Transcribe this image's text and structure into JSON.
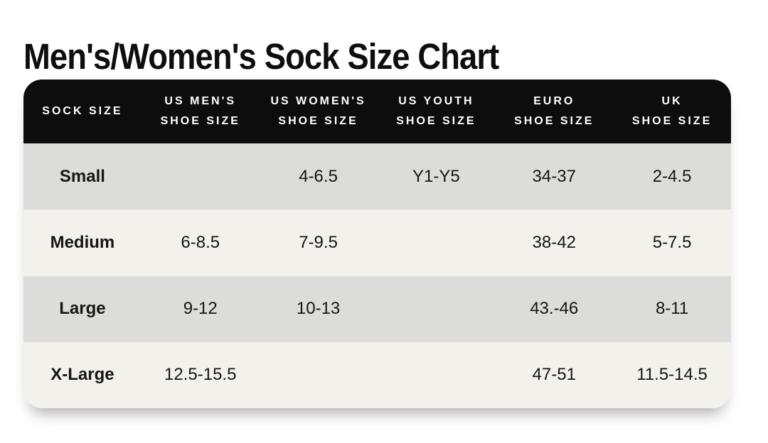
{
  "page": {
    "title": "Men's/Women's Sock Size Chart"
  },
  "colors": {
    "page_bg": "#ffffff",
    "title_text": "#0e0e0e",
    "header_bg": "#0d0d0d",
    "header_text": "#ffffff",
    "row_gray": "#dcdcdb",
    "row_cream": "#f2f1ec",
    "cell_text": "#161616"
  },
  "table": {
    "headers": [
      {
        "lines": [
          "SOCK SIZE",
          ""
        ]
      },
      {
        "lines": [
          "US MEN'S",
          "SHOE SIZE"
        ]
      },
      {
        "lines": [
          "US WOMEN'S",
          "SHOE SIZE"
        ]
      },
      {
        "lines": [
          "US YOUTH",
          "SHOE SIZE"
        ]
      },
      {
        "lines": [
          "EURO",
          "SHOE SIZE"
        ]
      },
      {
        "lines": [
          "UK",
          "SHOE SIZE"
        ]
      }
    ],
    "rows": [
      {
        "label": "Small",
        "cells": [
          "",
          "4-6.5",
          "Y1-Y5",
          "34-37",
          "2-4.5"
        ]
      },
      {
        "label": "Medium",
        "cells": [
          "6-8.5",
          "7-9.5",
          "",
          "38-42",
          "5-7.5"
        ]
      },
      {
        "label": "Large",
        "cells": [
          "9-12",
          "10-13",
          "",
          "43.-46",
          "8-11"
        ]
      },
      {
        "label": "X-Large",
        "cells": [
          "12.5-15.5",
          "",
          "",
          "47-51",
          "11.5-14.5"
        ]
      }
    ]
  },
  "chart_data": {
    "type": "table",
    "title": "Men's/Women's Sock Size Chart",
    "columns": [
      "SOCK SIZE",
      "US MEN'S SHOE SIZE",
      "US WOMEN'S SHOE SIZE",
      "US YOUTH SHOE SIZE",
      "EURO SHOE SIZE",
      "UK SHOE SIZE"
    ],
    "rows": [
      [
        "Small",
        "",
        "4-6.5",
        "Y1-Y5",
        "34-37",
        "2-4.5"
      ],
      [
        "Medium",
        "6-8.5",
        "7-9.5",
        "",
        "38-42",
        "5-7.5"
      ],
      [
        "Large",
        "9-12",
        "10-13",
        "",
        "43.-46",
        "8-11"
      ],
      [
        "X-Large",
        "12.5-15.5",
        "",
        "",
        "47-51",
        "11.5-14.5"
      ]
    ],
    "layout": {
      "header_style": "black bar, white uppercase letter-spaced text, rounded top corners",
      "row_striping": [
        "gray",
        "cream",
        "gray",
        "cream"
      ],
      "grid": false
    }
  }
}
